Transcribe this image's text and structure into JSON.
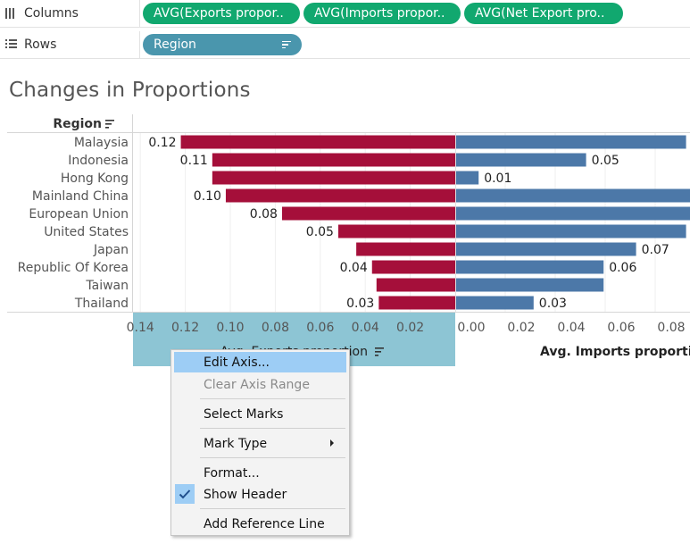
{
  "shelves": {
    "columns": {
      "label": "Columns",
      "pills": [
        "AVG(Exports propor..",
        "AVG(Imports propor..",
        "AVG(Net Export pro.."
      ]
    },
    "rows": {
      "label": "Rows",
      "pills": [
        "Region"
      ]
    }
  },
  "view": {
    "title": "Changes in Proportions",
    "row_header": "Region"
  },
  "chart_data": {
    "type": "bar",
    "orientation": "horizontal",
    "categories": [
      "Malaysia",
      "Indonesia",
      "Hong Kong",
      "Mainland China",
      "European Union",
      "United States",
      "Japan",
      "Republic Of Korea",
      "Taiwan",
      "Thailand"
    ],
    "series": [
      {
        "name": "Avg. Exports proportion",
        "values": [
          0.122,
          0.108,
          0.108,
          0.102,
          0.077,
          0.052,
          0.044,
          0.037,
          0.035,
          0.034
        ],
        "data_labels": [
          "0.12",
          "0.11",
          "",
          "0.10",
          "0.08",
          "0.05",
          "",
          "0.04",
          "",
          "0.03"
        ],
        "color": "#a50f3a",
        "axis": {
          "label": "Avg. Exports proportion",
          "reversed": true,
          "range": [
            0,
            0.142
          ],
          "ticks": [
            "0.14",
            "0.12",
            "0.10",
            "0.08",
            "0.06",
            "0.04",
            "0.02"
          ],
          "tick_values": [
            0.14,
            0.12,
            0.1,
            0.08,
            0.06,
            0.04,
            0.02
          ]
        }
      },
      {
        "name": "Avg. Imports proportion",
        "values": [
          0.092,
          0.052,
          0.009,
          0.1,
          0.095,
          0.092,
          0.072,
          0.059,
          0.059,
          0.031
        ],
        "data_labels": [
          "",
          "0.05",
          "0.01",
          "",
          "",
          "",
          "0.07",
          "0.06",
          "",
          "0.03"
        ],
        "color": "#4c78a8",
        "axis": {
          "label": "Avg. Imports proportion",
          "range": [
            0,
            0.092
          ],
          "ticks": [
            "0.00",
            "0.02",
            "0.04",
            "0.06",
            "0.08"
          ],
          "tick_values": [
            0,
            0.02,
            0.04,
            0.06,
            0.08
          ]
        }
      }
    ]
  },
  "context_menu": {
    "items": [
      {
        "label": "Edit Axis...",
        "state": "highlighted"
      },
      {
        "label": "Clear Axis Range",
        "state": "disabled"
      },
      {
        "label": "Select Marks",
        "state": "normal"
      },
      {
        "label": "Mark Type",
        "state": "submenu"
      },
      {
        "label": "Format...",
        "state": "normal"
      },
      {
        "label": "Show Header",
        "state": "checked"
      },
      {
        "label": "Add Reference Line",
        "state": "normal"
      }
    ]
  },
  "colors": {
    "pill_green": "#11a86f",
    "pill_blue": "#4a96ad",
    "axis_selected": "#8dc5d4",
    "menu_highlight": "#9dcdf5"
  }
}
